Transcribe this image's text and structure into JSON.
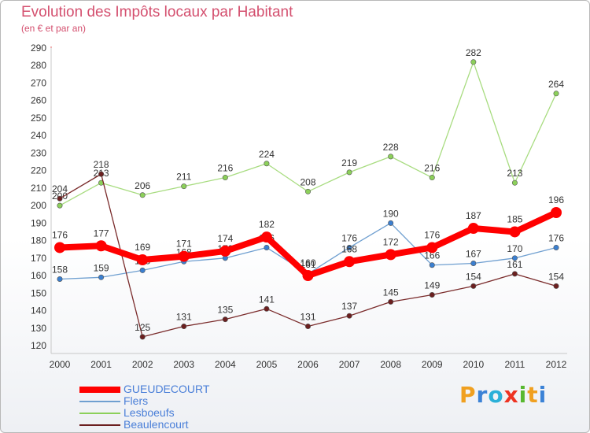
{
  "header": {
    "title": "Evolution des Impôts locaux par Habitant",
    "subtitle": "(en € et par an)"
  },
  "legend": {
    "items": [
      {
        "label": "GUEUDECOURT",
        "color": "#ff0000"
      },
      {
        "label": "Flers",
        "color": "#6f9fd0"
      },
      {
        "label": "Lesboeufs",
        "color": "#8cd05a"
      },
      {
        "label": "Beaulencourt",
        "color": "#6b1f1f"
      }
    ]
  },
  "logo": {
    "letters": [
      "P",
      "r",
      "o",
      "x",
      "i",
      "t",
      "i"
    ],
    "colors": [
      "#f0a020",
      "#3b82d6",
      "#2bb0d8",
      "#ee3322",
      "#58b830",
      "#f0a020",
      "#3b82d6"
    ]
  },
  "chart_data": {
    "type": "line",
    "x": [
      "2000",
      "2001",
      "2002",
      "2003",
      "2004",
      "2005",
      "2006",
      "2007",
      "2008",
      "2009",
      "2010",
      "2011",
      "2012"
    ],
    "yticks": [
      120,
      130,
      140,
      150,
      160,
      170,
      180,
      190,
      200,
      210,
      220,
      230,
      240,
      250,
      260,
      270,
      280,
      290
    ],
    "ylim": [
      120,
      290
    ],
    "grid": false,
    "series": [
      {
        "name": "GUEUDECOURT",
        "color": "#ff0000",
        "highlight": true,
        "values": [
          176,
          177,
          169,
          171,
          174,
          182,
          160,
          168,
          172,
          176,
          187,
          185,
          196
        ],
        "labels": [
          "176",
          "177",
          "169",
          "171",
          "174",
          "182",
          "160",
          "168",
          "172",
          "176",
          "187",
          "185",
          "196"
        ]
      },
      {
        "name": "Flers",
        "color": "#6f9fd0",
        "point_color": "#3b7fd0",
        "values": [
          158,
          159,
          163,
          168,
          170,
          176,
          161,
          176,
          190,
          166,
          167,
          170,
          176
        ],
        "labels": [
          "158",
          "159",
          "163",
          "168",
          "170",
          "176",
          "161",
          "176",
          "190",
          "166",
          "167",
          "170",
          "176"
        ]
      },
      {
        "name": "Lesboeufs",
        "color": "#a8dc80",
        "point_color": "#8cd05a",
        "values": [
          200,
          213,
          206,
          211,
          216,
          224,
          208,
          219,
          228,
          216,
          282,
          213,
          264
        ],
        "labels": [
          "200",
          "213",
          "206",
          "211",
          "216",
          "224",
          "208",
          "219",
          "228",
          "216",
          "282",
          "213",
          "264"
        ]
      },
      {
        "name": "Beaulencourt",
        "color": "#7a2b2b",
        "point_color": "#6b1f1f",
        "values": [
          204,
          218,
          125,
          131,
          135,
          141,
          131,
          137,
          145,
          149,
          154,
          161,
          154
        ],
        "labels": [
          "204",
          "218",
          "125",
          "131",
          "135",
          "141",
          "131",
          "137",
          "145",
          "149",
          "154",
          "161",
          "154"
        ]
      }
    ]
  }
}
